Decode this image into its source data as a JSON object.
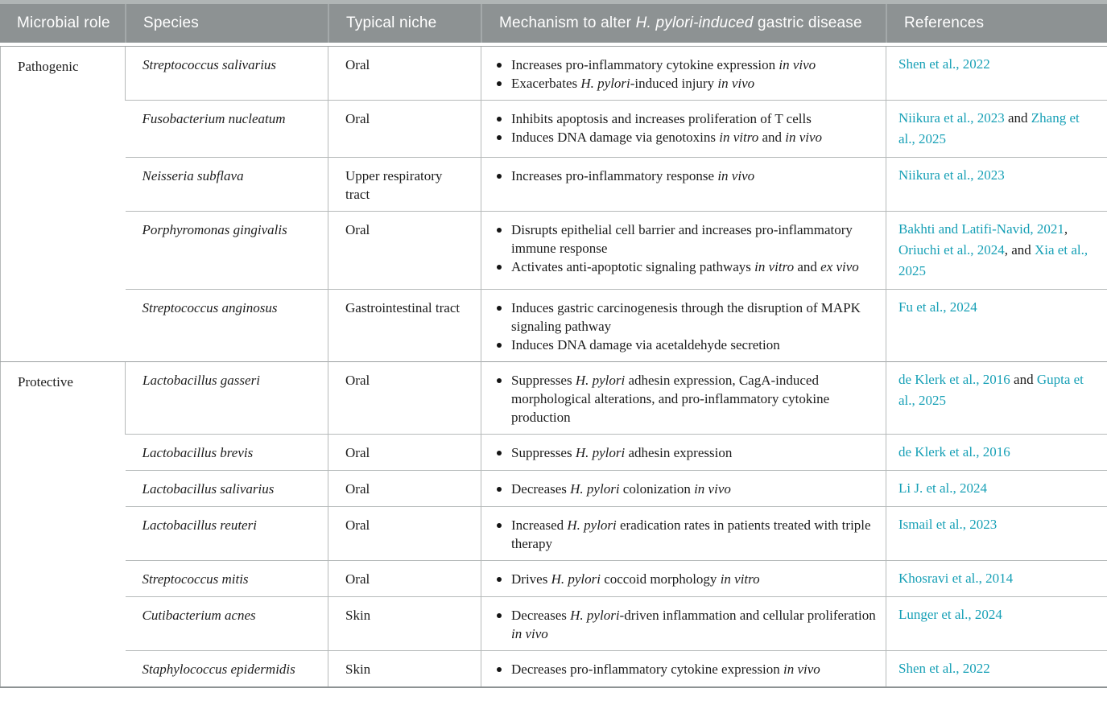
{
  "colors": {
    "header_bg": "#8d9293",
    "header_top_strip": "#b0b5b5",
    "header_text": "#ffffff",
    "header_divider": "#a4a9aa",
    "link": "#17a0b6",
    "text": "#1c1c1c",
    "grid_line": "#b6baba",
    "section_line": "#9b9fa0",
    "bottom_border": "#8d9293"
  },
  "table": {
    "headers": {
      "role": "Microbial role",
      "species": "Species",
      "niche": "Typical niche",
      "mechanism_segments": [
        {
          "t": "Mechanism to alter "
        },
        {
          "t": "H. pylori-induced",
          "i": true
        },
        {
          "t": " gastric disease"
        }
      ],
      "references": "References"
    },
    "groups": [
      {
        "role": "Pathogenic",
        "rows": [
          {
            "species": "Streptococcus salivarius",
            "niche": "Oral",
            "mechanisms": [
              [
                {
                  "t": "Increases pro-inflammatory cytokine expression "
                },
                {
                  "t": "in vivo",
                  "i": true
                }
              ],
              [
                {
                  "t": "Exacerbates "
                },
                {
                  "t": "H. pylori",
                  "i": true
                },
                {
                  "t": "-induced injury "
                },
                {
                  "t": "in vivo",
                  "i": true
                }
              ]
            ],
            "references": [
              {
                "t": "Shen et al., 2022",
                "link": true
              }
            ]
          },
          {
            "species": "Fusobacterium nucleatum",
            "niche": "Oral",
            "mechanisms": [
              [
                {
                  "t": "Inhibits apoptosis and increases proliferation of T cells"
                }
              ],
              [
                {
                  "t": "Induces DNA damage via genotoxins "
                },
                {
                  "t": "in vitro",
                  "i": true
                },
                {
                  "t": " and "
                },
                {
                  "t": "in vivo",
                  "i": true
                }
              ]
            ],
            "references": [
              {
                "t": "Niikura et al., 2023",
                "link": true
              },
              {
                "t": " and "
              },
              {
                "t": "Zhang et al., 2025",
                "link": true
              }
            ]
          },
          {
            "species": "Neisseria subflava",
            "niche": "Upper respiratory tract",
            "mechanisms": [
              [
                {
                  "t": "Increases pro-inflammatory response "
                },
                {
                  "t": "in vivo",
                  "i": true
                }
              ]
            ],
            "references": [
              {
                "t": "Niikura et al., 2023",
                "link": true
              }
            ]
          },
          {
            "species": "Porphyromonas gingivalis",
            "niche": "Oral",
            "mechanisms": [
              [
                {
                  "t": "Disrupts epithelial cell barrier and increases pro-inflammatory immune response"
                }
              ],
              [
                {
                  "t": "Activates anti-apoptotic signaling pathways "
                },
                {
                  "t": "in vitro",
                  "i": true
                },
                {
                  "t": " and "
                },
                {
                  "t": "ex vivo",
                  "i": true
                }
              ]
            ],
            "references": [
              {
                "t": "Bakhti and Latifi-Navid, 2021",
                "link": true
              },
              {
                "t": ", "
              },
              {
                "t": "Oriuchi et al., 2024",
                "link": true
              },
              {
                "t": ", and "
              },
              {
                "t": "Xia et al., 2025",
                "link": true
              }
            ]
          },
          {
            "species": "Streptococcus anginosus",
            "niche": "Gastrointestinal tract",
            "mechanisms": [
              [
                {
                  "t": "Induces gastric carcinogenesis through the disruption of MAPK signaling pathway"
                }
              ],
              [
                {
                  "t": "Induces DNA damage via acetaldehyde secretion"
                }
              ]
            ],
            "references": [
              {
                "t": "Fu et al., 2024",
                "link": true
              }
            ]
          }
        ]
      },
      {
        "role": "Protective",
        "rows": [
          {
            "species": "Lactobacillus gasseri",
            "niche": "Oral",
            "mechanisms": [
              [
                {
                  "t": "Suppresses "
                },
                {
                  "t": "H. pylori",
                  "i": true
                },
                {
                  "t": " adhesin expression, CagA-induced morphological alterations, and pro-inflammatory cytokine production"
                }
              ]
            ],
            "references": [
              {
                "t": "de Klerk et al., 2016",
                "link": true
              },
              {
                "t": " and "
              },
              {
                "t": "Gupta et al., 2025",
                "link": true
              }
            ]
          },
          {
            "species": "Lactobacillus brevis",
            "niche": "Oral",
            "mechanisms": [
              [
                {
                  "t": "Suppresses "
                },
                {
                  "t": "H. pylori",
                  "i": true
                },
                {
                  "t": " adhesin expression"
                }
              ]
            ],
            "references": [
              {
                "t": "de Klerk et al., 2016",
                "link": true
              }
            ]
          },
          {
            "species": "Lactobacillus salivarius",
            "niche": "Oral",
            "mechanisms": [
              [
                {
                  "t": "Decreases "
                },
                {
                  "t": "H. pylori",
                  "i": true
                },
                {
                  "t": " colonization "
                },
                {
                  "t": "in vivo",
                  "i": true
                }
              ]
            ],
            "references": [
              {
                "t": "Li J. et al., 2024",
                "link": true
              }
            ]
          },
          {
            "species": "Lactobacillus reuteri",
            "niche": "Oral",
            "mechanisms": [
              [
                {
                  "t": "Increased "
                },
                {
                  "t": "H. pylori",
                  "i": true
                },
                {
                  "t": " eradication rates in patients treated with triple therapy"
                }
              ]
            ],
            "references": [
              {
                "t": "Ismail et al., 2023",
                "link": true
              }
            ]
          },
          {
            "species": "Streptococcus mitis",
            "niche": "Oral",
            "mechanisms": [
              [
                {
                  "t": "Drives "
                },
                {
                  "t": "H. pylori",
                  "i": true
                },
                {
                  "t": " coccoid morphology "
                },
                {
                  "t": "in vitro",
                  "i": true
                }
              ]
            ],
            "references": [
              {
                "t": "Khosravi et al., 2014",
                "link": true
              }
            ]
          },
          {
            "species": "Cutibacterium acnes",
            "niche": "Skin",
            "mechanisms": [
              [
                {
                  "t": "Decreases "
                },
                {
                  "t": "H. pylori",
                  "i": true
                },
                {
                  "t": "-driven inflammation and cellular proliferation "
                },
                {
                  "t": "in vivo",
                  "i": true
                }
              ]
            ],
            "references": [
              {
                "t": "Lunger et al., 2024",
                "link": true
              }
            ]
          },
          {
            "species": "Staphylococcus epidermidis",
            "niche": "Skin",
            "mechanisms": [
              [
                {
                  "t": "Decreases pro-inflammatory cytokine expression "
                },
                {
                  "t": "in vivo",
                  "i": true
                }
              ]
            ],
            "references": [
              {
                "t": "Shen et al., 2022",
                "link": true
              }
            ]
          }
        ]
      }
    ]
  }
}
